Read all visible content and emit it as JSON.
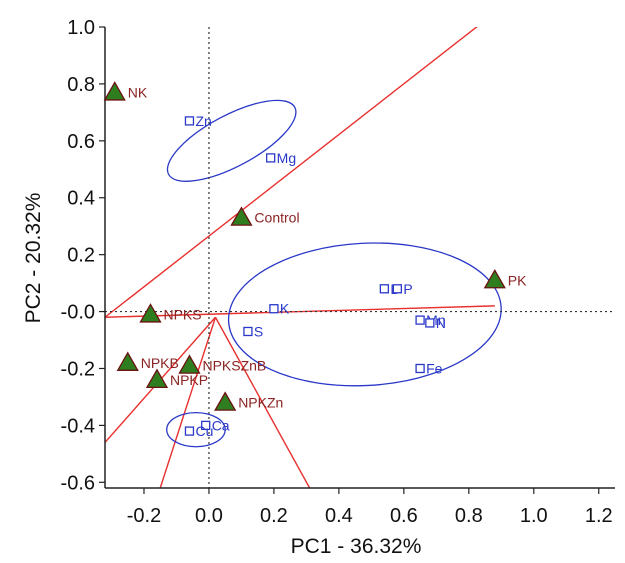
{
  "chart_data": {
    "type": "scatter",
    "xlabel": "PC1 - 36.32%",
    "ylabel": "PC2 - 20.32%",
    "xlim": [
      -0.32,
      1.25
    ],
    "ylim": [
      -0.62,
      1.0
    ],
    "xticks": [
      {
        "value": -0.2,
        "label": "-0.2"
      },
      {
        "value": 0.0,
        "label": "0.0"
      },
      {
        "value": 0.2,
        "label": "0.2"
      },
      {
        "value": 0.4,
        "label": "0.4"
      },
      {
        "value": 0.6,
        "label": "0.6"
      },
      {
        "value": 0.8,
        "label": "0.8"
      },
      {
        "value": 1.0,
        "label": "1.0"
      },
      {
        "value": 1.2,
        "label": "1.2"
      }
    ],
    "yticks": [
      {
        "value": 1.0,
        "label": "1.0"
      },
      {
        "value": 0.8,
        "label": "0.8"
      },
      {
        "value": 0.6,
        "label": "0.6"
      },
      {
        "value": 0.4,
        "label": "0.4"
      },
      {
        "value": 0.2,
        "label": "0.2"
      },
      {
        "value": 0.0,
        "label": "-0.0"
      },
      {
        "value": -0.2,
        "label": "-0.2"
      },
      {
        "value": -0.4,
        "label": "-0.4"
      },
      {
        "value": -0.6,
        "label": "-0.6"
      }
    ],
    "grid": false,
    "colors": {
      "treatment_fill": "#2e7d1e",
      "treatment_stroke": "#6b1212",
      "treatment_label": "#8b2323",
      "variable": "#2a38c8",
      "ellipse": "#2a38c8",
      "vector": "#e8302e",
      "zero_line": "#333333"
    },
    "treatments": [
      {
        "label": "NK",
        "x": -0.29,
        "y": 0.77
      },
      {
        "label": "Control",
        "x": 0.1,
        "y": 0.33
      },
      {
        "label": "PK",
        "x": 0.88,
        "y": 0.11
      },
      {
        "label": "NPKS",
        "x": -0.18,
        "y": -0.01
      },
      {
        "label": "NPKB",
        "x": -0.25,
        "y": -0.18
      },
      {
        "label": "NPKSZnB",
        "x": -0.06,
        "y": -0.19
      },
      {
        "label": "NPKP",
        "x": -0.16,
        "y": -0.24
      },
      {
        "label": "NPKZn",
        "x": 0.05,
        "y": -0.32
      }
    ],
    "variables": [
      {
        "label": "Zn",
        "x": -0.06,
        "y": 0.67
      },
      {
        "label": "Mg",
        "x": 0.19,
        "y": 0.54
      },
      {
        "label": "B",
        "x": 0.54,
        "y": 0.08
      },
      {
        "label": "P",
        "x": 0.58,
        "y": 0.08
      },
      {
        "label": "K",
        "x": 0.2,
        "y": 0.01
      },
      {
        "label": "S",
        "x": 0.12,
        "y": -0.07
      },
      {
        "label": "Mn",
        "x": 0.65,
        "y": -0.03
      },
      {
        "label": "N",
        "x": 0.68,
        "y": -0.04
      },
      {
        "label": "Fe",
        "x": 0.65,
        "y": -0.2
      },
      {
        "label": "Ca",
        "x": -0.01,
        "y": -0.4
      },
      {
        "label": "Cu",
        "x": -0.06,
        "y": -0.42
      }
    ],
    "ellipses": [
      {
        "cx": 0.07,
        "cy": 0.6,
        "rx": 0.22,
        "ry": 0.09,
        "angle_deg": -28
      },
      {
        "cx": 0.48,
        "cy": -0.01,
        "rx": 0.42,
        "ry": 0.25,
        "angle_deg": -3
      },
      {
        "cx": -0.04,
        "cy": -0.415,
        "rx": 0.09,
        "ry": 0.06,
        "angle_deg": 0
      }
    ],
    "vectors": [
      {
        "x1": -0.32,
        "y1": -0.02,
        "x2": 0.88,
        "y2": 1.05
      },
      {
        "x1": -0.32,
        "y1": -0.02,
        "x2": 0.88,
        "y2": 0.02
      },
      {
        "x1": 0.02,
        "y1": -0.02,
        "x2": -0.32,
        "y2": -0.46
      },
      {
        "x1": 0.02,
        "y1": -0.02,
        "x2": -0.15,
        "y2": -0.62
      },
      {
        "x1": 0.02,
        "y1": -0.02,
        "x2": 0.31,
        "y2": -0.62
      }
    ]
  }
}
